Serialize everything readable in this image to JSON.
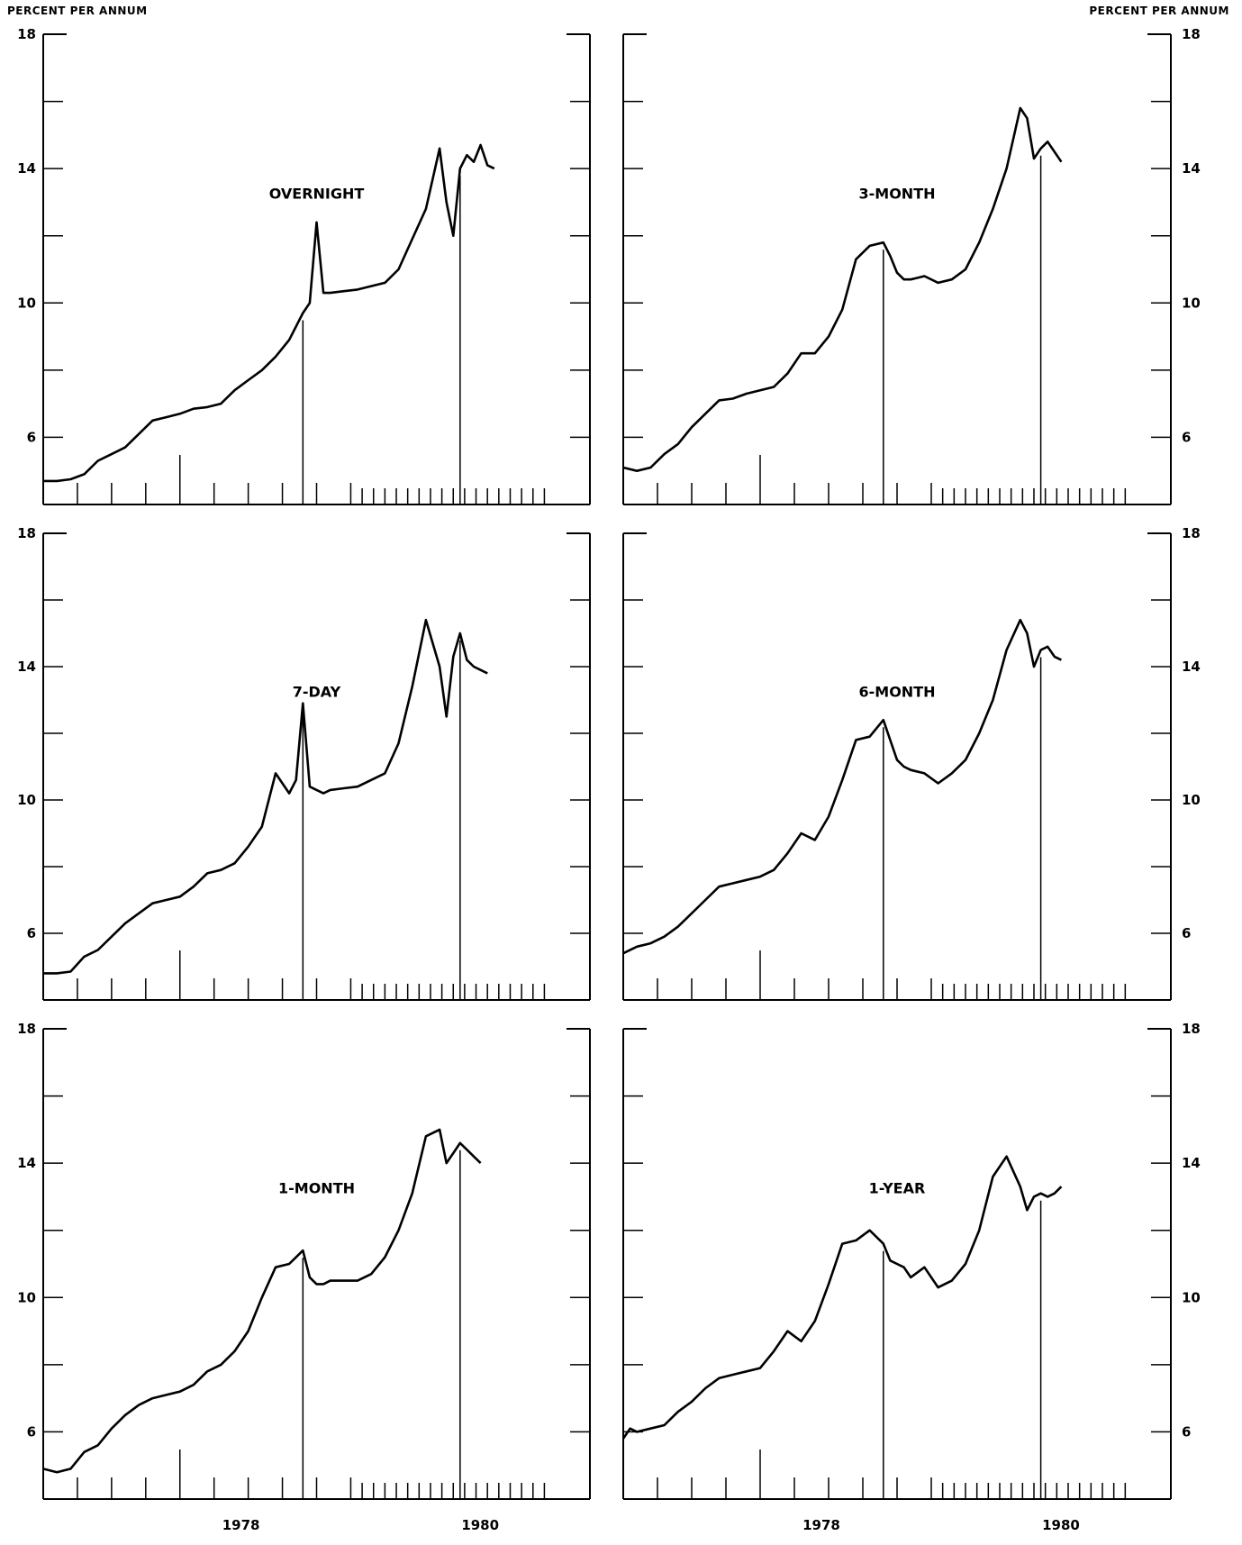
{
  "y_axis_label_left": "PERCENT PER ANNUM",
  "y_axis_label_right": "PERCENT PER ANNUM",
  "x_tick_labels": [
    "1978",
    "1980"
  ],
  "chart_data": [
    {
      "type": "line",
      "title": "OVERNIGHT",
      "ylim": [
        4,
        18
      ],
      "y_ticks": [
        6,
        10,
        14,
        18
      ],
      "y_tick_labels": [
        "6",
        "10",
        "14",
        "18"
      ],
      "xlim": [
        1976.5,
        1980.5
      ],
      "x_tick_labels": [],
      "series": [
        {
          "x": [
            1976.5,
            1976.6,
            1976.7,
            1976.8,
            1976.9,
            1977.0,
            1977.1,
            1977.2,
            1977.3,
            1977.4,
            1977.5,
            1977.6,
            1977.7,
            1977.8,
            1977.9,
            1978.0,
            1978.1,
            1978.2,
            1978.3,
            1978.4,
            1978.45,
            1978.5,
            1978.55,
            1978.6,
            1978.7,
            1978.8,
            1978.9,
            1979.0,
            1979.1,
            1979.2,
            1979.3,
            1979.4,
            1979.45,
            1979.5,
            1979.55,
            1979.6,
            1979.65,
            1979.7,
            1979.75,
            1979.8
          ],
          "values": [
            4.7,
            4.7,
            4.75,
            4.9,
            5.3,
            5.5,
            5.7,
            6.1,
            6.5,
            6.6,
            6.7,
            6.85,
            6.9,
            7.0,
            7.4,
            7.7,
            8.0,
            8.4,
            8.9,
            9.7,
            10.0,
            12.4,
            10.3,
            10.3,
            10.35,
            10.4,
            10.5,
            10.6,
            11.0,
            11.9,
            12.8,
            14.6,
            13.0,
            12.0,
            14.0,
            14.4,
            14.2,
            14.7,
            14.1,
            14.0
          ]
        }
      ]
    },
    {
      "type": "line",
      "title": "3-MONTH",
      "ylim": [
        4,
        18
      ],
      "y_ticks": [
        6,
        10,
        14,
        18
      ],
      "y_tick_labels": [
        "6",
        "10",
        "14",
        "18"
      ],
      "xlim": [
        1976.5,
        1980.5
      ],
      "x_tick_labels": [],
      "series": [
        {
          "x": [
            1976.5,
            1976.6,
            1976.7,
            1976.8,
            1976.9,
            1977.0,
            1977.1,
            1977.2,
            1977.3,
            1977.4,
            1977.5,
            1977.6,
            1977.7,
            1977.8,
            1977.9,
            1978.0,
            1978.1,
            1978.2,
            1978.3,
            1978.4,
            1978.45,
            1978.5,
            1978.55,
            1978.6,
            1978.7,
            1978.8,
            1978.9,
            1979.0,
            1979.1,
            1979.2,
            1979.3,
            1979.4,
            1979.45,
            1979.5,
            1979.55,
            1979.6,
            1979.65,
            1979.7
          ],
          "values": [
            5.1,
            5.0,
            5.1,
            5.5,
            5.8,
            6.3,
            6.7,
            7.1,
            7.15,
            7.3,
            7.4,
            7.5,
            7.9,
            8.5,
            8.5,
            9.0,
            9.8,
            11.3,
            11.7,
            11.8,
            11.4,
            10.9,
            10.7,
            10.7,
            10.8,
            10.6,
            10.7,
            11.0,
            11.8,
            12.8,
            14.0,
            15.8,
            15.5,
            14.3,
            14.6,
            14.8,
            14.5,
            14.2
          ]
        }
      ]
    },
    {
      "type": "line",
      "title": "7-DAY",
      "ylim": [
        4,
        18
      ],
      "y_ticks": [
        6,
        10,
        14,
        18
      ],
      "y_tick_labels": [
        "6",
        "10",
        "14",
        "18"
      ],
      "xlim": [
        1976.5,
        1980.5
      ],
      "x_tick_labels": [],
      "series": [
        {
          "x": [
            1976.5,
            1976.6,
            1976.7,
            1976.8,
            1976.9,
            1977.0,
            1977.1,
            1977.2,
            1977.3,
            1977.4,
            1977.5,
            1977.6,
            1977.7,
            1977.8,
            1977.9,
            1978.0,
            1978.1,
            1978.2,
            1978.3,
            1978.35,
            1978.4,
            1978.45,
            1978.5,
            1978.55,
            1978.6,
            1978.7,
            1978.8,
            1978.9,
            1979.0,
            1979.1,
            1979.2,
            1979.3,
            1979.4,
            1979.45,
            1979.5,
            1979.55,
            1979.6,
            1979.65,
            1979.7,
            1979.75
          ],
          "values": [
            4.8,
            4.8,
            4.85,
            5.3,
            5.5,
            5.9,
            6.3,
            6.6,
            6.9,
            7.0,
            7.1,
            7.4,
            7.8,
            7.9,
            8.1,
            8.6,
            9.2,
            10.8,
            10.2,
            10.6,
            12.9,
            10.4,
            10.3,
            10.2,
            10.3,
            10.35,
            10.4,
            10.6,
            10.8,
            11.7,
            13.4,
            15.4,
            14.0,
            12.5,
            14.3,
            15.0,
            14.2,
            14.0,
            13.9,
            13.8
          ]
        }
      ]
    },
    {
      "type": "line",
      "title": "6-MONTH",
      "ylim": [
        4,
        18
      ],
      "y_ticks": [
        6,
        10,
        14,
        18
      ],
      "y_tick_labels": [
        "6",
        "10",
        "14",
        "18"
      ],
      "xlim": [
        1976.5,
        1980.5
      ],
      "x_tick_labels": [],
      "series": [
        {
          "x": [
            1976.5,
            1976.6,
            1976.7,
            1976.8,
            1976.9,
            1977.0,
            1977.1,
            1977.2,
            1977.3,
            1977.4,
            1977.5,
            1977.6,
            1977.7,
            1977.8,
            1977.9,
            1978.0,
            1978.1,
            1978.2,
            1978.3,
            1978.4,
            1978.45,
            1978.5,
            1978.55,
            1978.6,
            1978.7,
            1978.8,
            1978.9,
            1979.0,
            1979.1,
            1979.2,
            1979.3,
            1979.4,
            1979.45,
            1979.5,
            1979.55,
            1979.6,
            1979.65,
            1979.7
          ],
          "values": [
            5.4,
            5.6,
            5.7,
            5.9,
            6.2,
            6.6,
            7.0,
            7.4,
            7.5,
            7.6,
            7.7,
            7.9,
            8.4,
            9.0,
            8.8,
            9.5,
            10.6,
            11.8,
            11.9,
            12.4,
            11.8,
            11.2,
            11.0,
            10.9,
            10.8,
            10.5,
            10.8,
            11.2,
            12.0,
            13.0,
            14.5,
            15.4,
            15.0,
            14.0,
            14.5,
            14.6,
            14.3,
            14.2
          ]
        }
      ]
    },
    {
      "type": "line",
      "title": "1-MONTH",
      "ylim": [
        4,
        18
      ],
      "y_ticks": [
        6,
        10,
        14,
        18
      ],
      "y_tick_labels": [
        "6",
        "10",
        "14",
        "18"
      ],
      "xlim": [
        1976.5,
        1980.5
      ],
      "x_tick_labels": [
        "1978",
        "1980"
      ],
      "series": [
        {
          "x": [
            1976.5,
            1976.6,
            1976.7,
            1976.8,
            1976.9,
            1977.0,
            1977.1,
            1977.2,
            1977.3,
            1977.4,
            1977.5,
            1977.6,
            1977.7,
            1977.8,
            1977.9,
            1978.0,
            1978.1,
            1978.2,
            1978.3,
            1978.4,
            1978.45,
            1978.5,
            1978.55,
            1978.6,
            1978.7,
            1978.8,
            1978.9,
            1979.0,
            1979.1,
            1979.2,
            1979.3,
            1979.4,
            1979.45,
            1979.5,
            1979.55,
            1979.6,
            1979.65,
            1979.7
          ],
          "values": [
            4.9,
            4.8,
            4.9,
            5.4,
            5.6,
            6.1,
            6.5,
            6.8,
            7.0,
            7.1,
            7.2,
            7.4,
            7.8,
            8.0,
            8.4,
            9.0,
            10.0,
            10.9,
            11.0,
            11.4,
            10.6,
            10.4,
            10.4,
            10.5,
            10.5,
            10.5,
            10.7,
            11.2,
            12.0,
            13.1,
            14.8,
            15.0,
            14.0,
            14.3,
            14.6,
            14.4,
            14.2,
            14.0
          ]
        }
      ]
    },
    {
      "type": "line",
      "title": "1-YEAR",
      "ylim": [
        4,
        18
      ],
      "y_ticks": [
        6,
        10,
        14,
        18
      ],
      "y_tick_labels": [
        "6",
        "10",
        "14",
        "18"
      ],
      "xlim": [
        1976.5,
        1980.5
      ],
      "x_tick_labels": [
        "1978",
        "1980"
      ],
      "series": [
        {
          "x": [
            1976.5,
            1976.55,
            1976.6,
            1976.7,
            1976.8,
            1976.9,
            1977.0,
            1977.1,
            1977.2,
            1977.3,
            1977.4,
            1977.5,
            1977.6,
            1977.7,
            1977.8,
            1977.9,
            1978.0,
            1978.1,
            1978.2,
            1978.3,
            1978.4,
            1978.45,
            1978.5,
            1978.55,
            1978.6,
            1978.7,
            1978.8,
            1978.9,
            1979.0,
            1979.1,
            1979.2,
            1979.3,
            1979.4,
            1979.45,
            1979.5,
            1979.55,
            1979.6,
            1979.65,
            1979.7
          ],
          "values": [
            5.8,
            6.1,
            6.0,
            6.1,
            6.2,
            6.6,
            6.9,
            7.3,
            7.6,
            7.7,
            7.8,
            7.9,
            8.4,
            9.0,
            8.7,
            9.3,
            10.4,
            11.6,
            11.7,
            12.0,
            11.6,
            11.1,
            11.0,
            10.9,
            10.6,
            10.9,
            10.3,
            10.5,
            11.0,
            12.0,
            13.6,
            14.2,
            13.3,
            12.6,
            13.0,
            13.1,
            13.0,
            13.1,
            13.3
          ]
        }
      ]
    }
  ]
}
